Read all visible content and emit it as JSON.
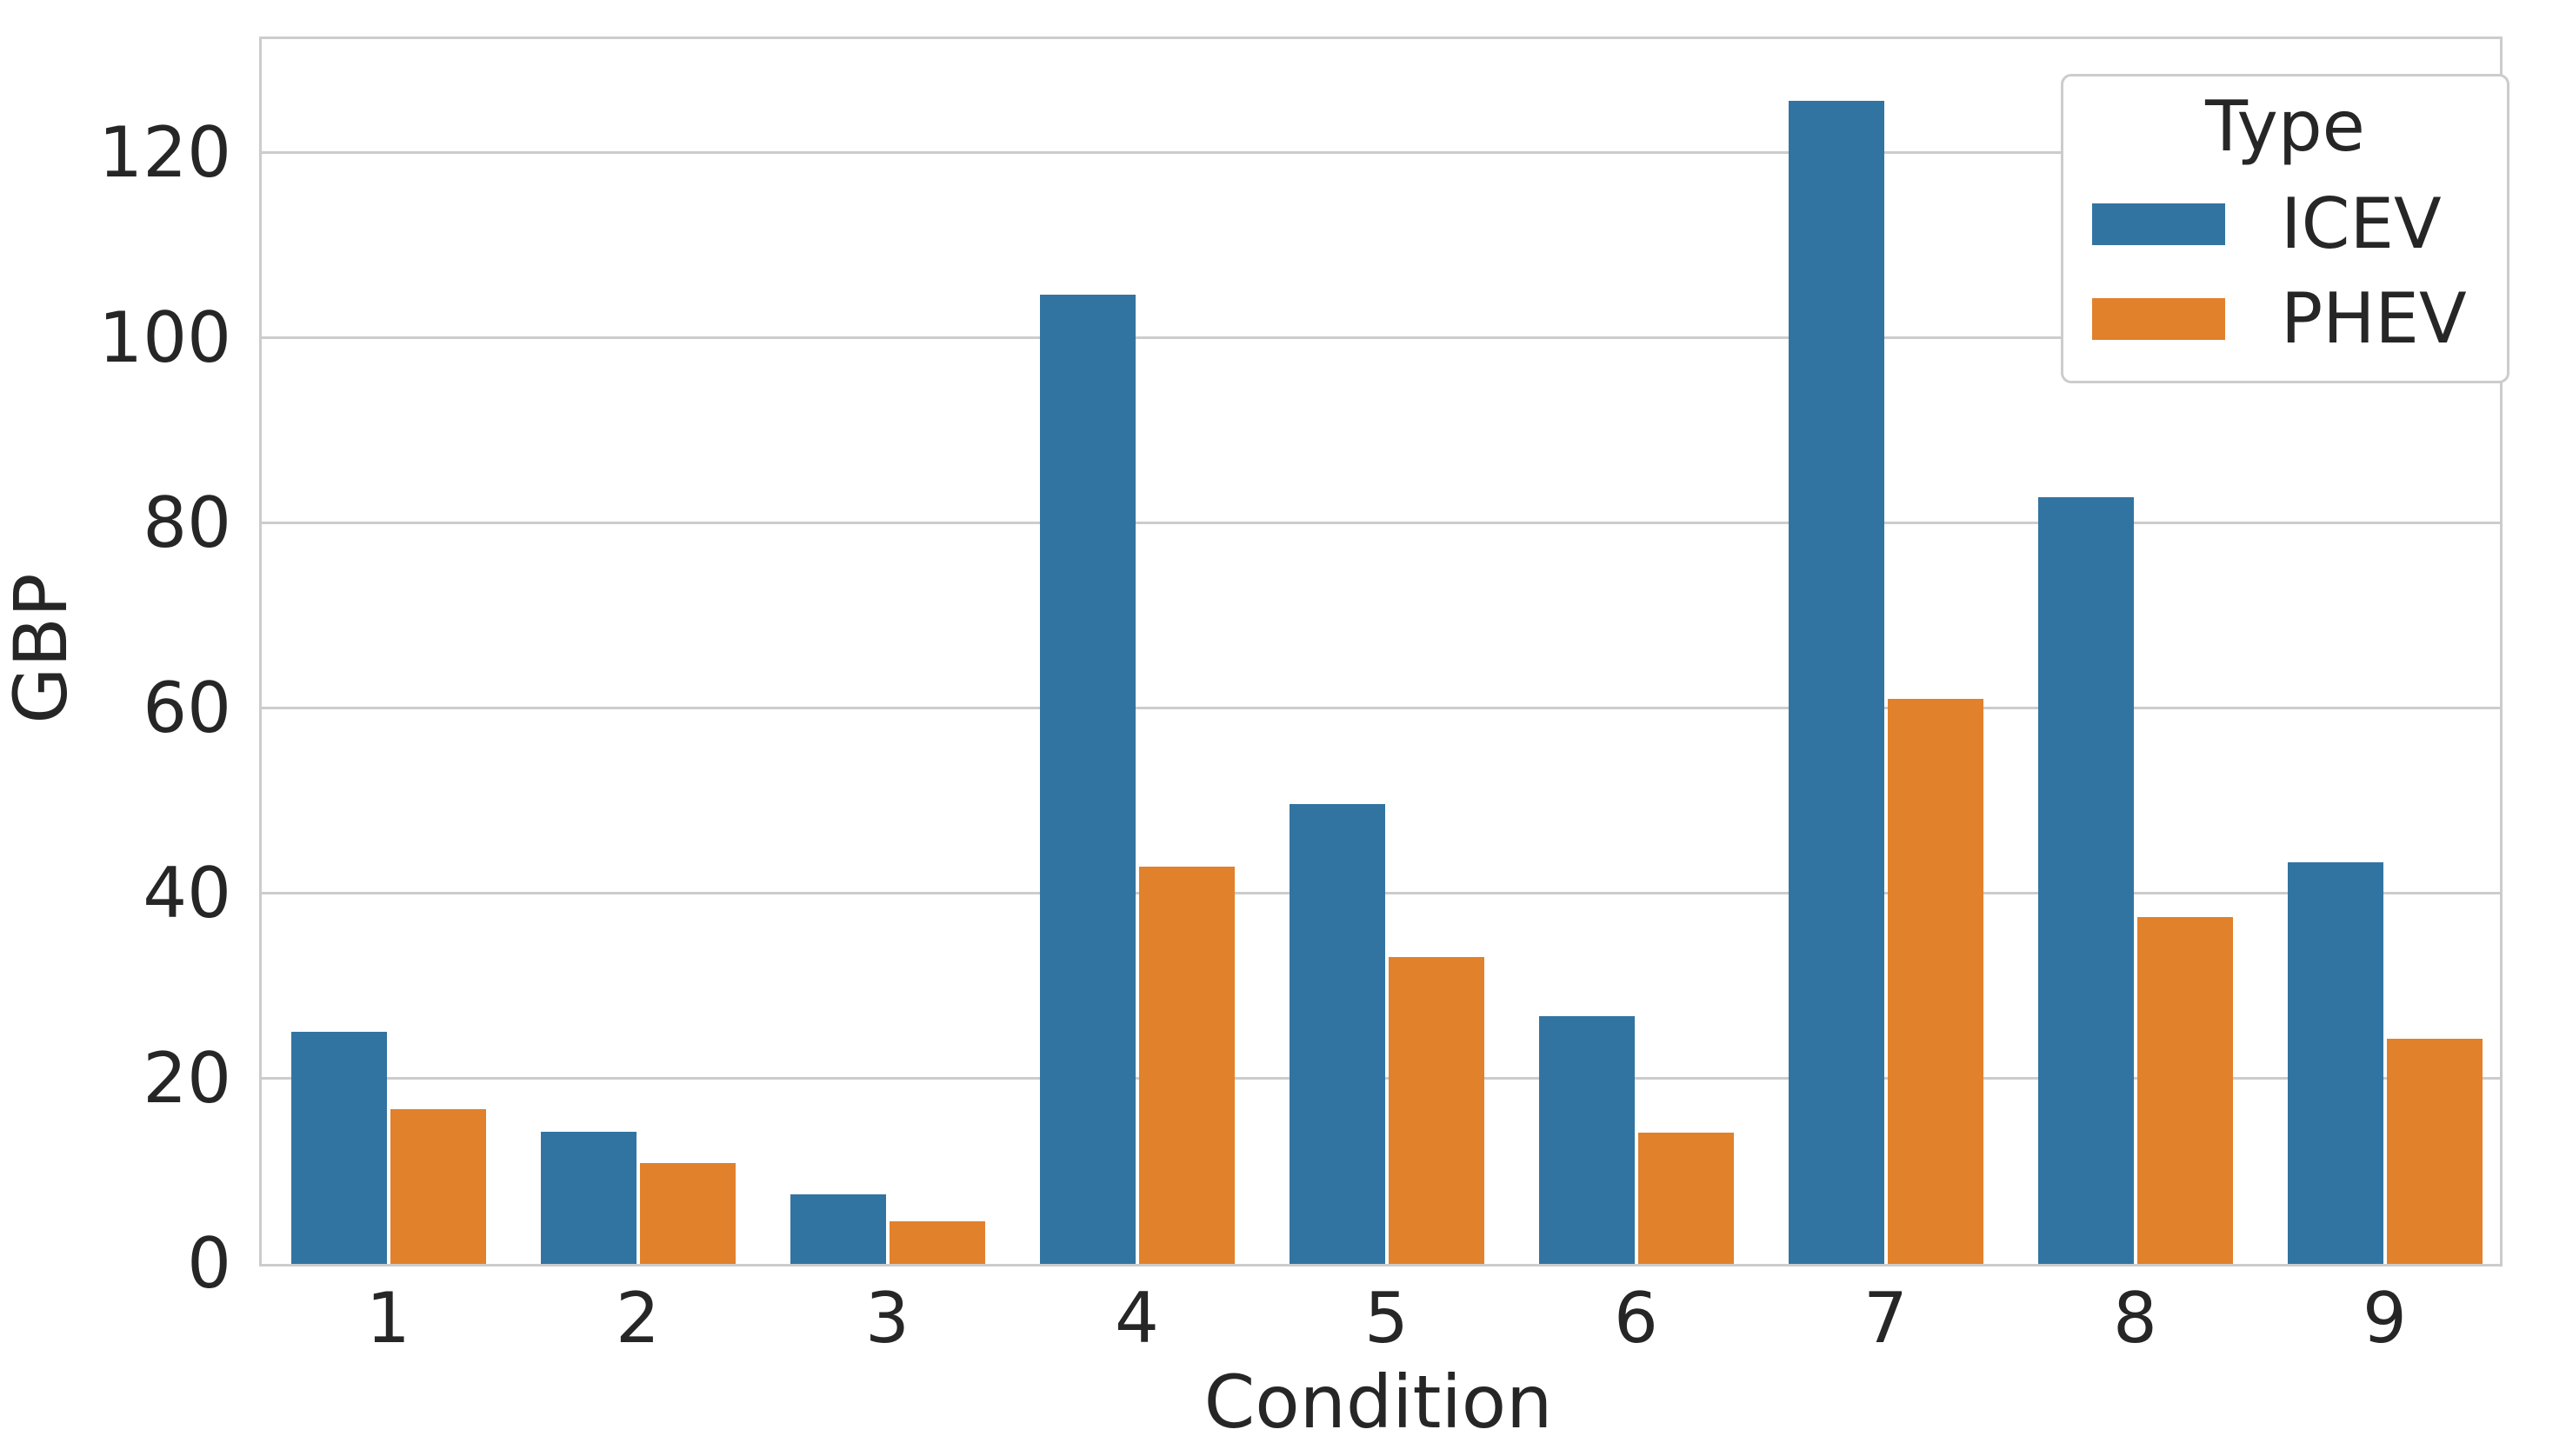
{
  "chart_data": {
    "type": "bar",
    "title": "",
    "xlabel": "Condition",
    "ylabel": "GBP",
    "categories": [
      "1",
      "2",
      "3",
      "4",
      "5",
      "6",
      "7",
      "8",
      "9"
    ],
    "series": [
      {
        "name": "ICEV",
        "color": "#3274a1",
        "values": [
          25.1,
          14.3,
          7.5,
          104.7,
          49.7,
          26.8,
          125.6,
          82.8,
          43.4
        ]
      },
      {
        "name": "PHEV",
        "color": "#e1812c",
        "values": [
          16.7,
          10.9,
          4.6,
          42.9,
          33.1,
          14.2,
          61.0,
          37.5,
          24.3
        ]
      }
    ],
    "ylim": [
      0,
      132.3
    ],
    "yticks": [
      0,
      20,
      40,
      60,
      80,
      100,
      120
    ],
    "grid": "horizontal",
    "grid_color": "#cccccc",
    "background": "#ffffff",
    "text_color": "#262626",
    "legend": {
      "title": "Type",
      "position": "upper right"
    }
  }
}
